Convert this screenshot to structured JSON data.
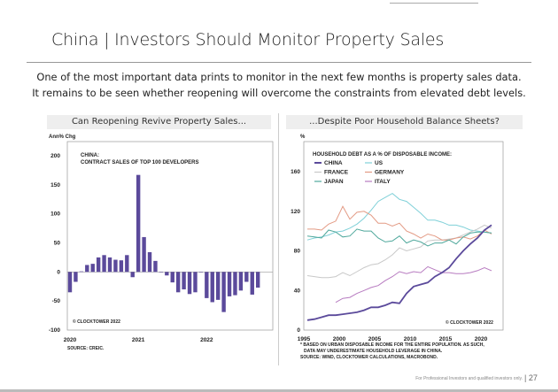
{
  "header": {
    "title": "China | Investors Should Monitor Property Sales",
    "subtitle_1": "One of the most important data prints to monitor in the next few months is property sales data.",
    "subtitle_2": "It remains to be seen whether reopening will overcome the constraints from elevated debt levels."
  },
  "footer": {
    "disclaimer": "For Professional Investors and qualified investors only.",
    "page": "| 27"
  },
  "chart_data": [
    {
      "type": "bar",
      "panel_title": "Can Reopening Revive Property Sales...",
      "title": "CHINA:",
      "subtitle": "CONTRACT SALES OF TOP 100 DEVELOPERS",
      "ylabel": "Ann% Chg",
      "ylim": [
        -100,
        200
      ],
      "yticks": [
        "200",
        "150",
        "100",
        "50",
        "0",
        "-50",
        "-100"
      ],
      "ytick_values": [
        200,
        150,
        100,
        50,
        0,
        -50,
        -100
      ],
      "xtick_labels": [
        "2020",
        "2021",
        "2022"
      ],
      "xtick_index": [
        0,
        12,
        24
      ],
      "copyright": "© CLOCKTOWER 2022",
      "source": "SOURCE: CREIC.",
      "color": "#5b4a9b",
      "values": [
        -35,
        -17,
        1,
        12,
        14,
        25,
        29,
        25,
        21,
        20,
        29,
        -9,
        167,
        60,
        34,
        19,
        0,
        -6,
        -18,
        -35,
        -30,
        -38,
        -35,
        0,
        -45,
        -52,
        -48,
        -69,
        -42,
        -40,
        -32,
        -17,
        -39,
        -27
      ]
    },
    {
      "type": "line",
      "panel_title": "...Despite Poor Household Balance Sheets?",
      "title": "HOUSEHOLD DEBT AS A % OF DISPOSABLE INCOME:",
      "ylabel": "%",
      "ylim": [
        0,
        190
      ],
      "xlim": [
        1995,
        2023
      ],
      "yticks": [
        "0",
        "40",
        "80",
        "120",
        "160"
      ],
      "ytick_values": [
        0,
        40,
        80,
        120,
        160
      ],
      "xticks": [
        "1995",
        "2000",
        "2005",
        "2010",
        "2015",
        "2020"
      ],
      "xtick_values": [
        1995,
        2000,
        2005,
        2010,
        2015,
        2020
      ],
      "copyright": "© CLOCKTOWER 2022",
      "notes": [
        "* BASED ON URBAN DISPOSABLE INCOME FOR THE ENTIRE POPULATION. AS SUCH,",
        "DATA MAY UNDERESTIMATE HOUSEHOLD LEVERAGE IN CHINA.",
        "SOURCE: WIND, CLOCKTOWER CALCULATIONS, MACROBOND."
      ],
      "series": [
        {
          "name": "CHINA",
          "color": "#5b4a9b",
          "start": 1995,
          "values": [
            10,
            11,
            13,
            15,
            15,
            16,
            17,
            18,
            20,
            23,
            23,
            25,
            28,
            27,
            37,
            44,
            46,
            48,
            54,
            58,
            63,
            72,
            80,
            87,
            93,
            101,
            106
          ]
        },
        {
          "name": "US",
          "color": "#7fd0d8",
          "start": 1995,
          "values": [
            91,
            93,
            94,
            96,
            99,
            100,
            103,
            107,
            113,
            121,
            130,
            134,
            138,
            132,
            130,
            124,
            118,
            111,
            111,
            109,
            106,
            106,
            104,
            101,
            100,
            99,
            98
          ]
        },
        {
          "name": "FRANCE",
          "color": "#c8c8c8",
          "start": 1995,
          "values": [
            55,
            54,
            53,
            53,
            54,
            58,
            55,
            59,
            63,
            66,
            67,
            71,
            76,
            83,
            80,
            82,
            84,
            90,
            91,
            91,
            92,
            93,
            96,
            99,
            102,
            106,
            103
          ]
        },
        {
          "name": "GERMANY",
          "color": "#e39a84",
          "start": 1995,
          "values": [
            102,
            102,
            101,
            107,
            110,
            125,
            112,
            119,
            120,
            116,
            108,
            108,
            105,
            108,
            100,
            97,
            93,
            97,
            95,
            91,
            91,
            93,
            94,
            92,
            95,
            101,
            97
          ]
        },
        {
          "name": "JAPAN",
          "color": "#4fa89c",
          "start": 1995,
          "values": [
            95,
            94,
            93,
            101,
            99,
            94,
            95,
            102,
            100,
            100,
            93,
            89,
            90,
            95,
            88,
            91,
            89,
            85,
            88,
            88,
            91,
            87,
            94,
            98,
            99,
            99,
            98
          ]
        },
        {
          "name": "ITALY",
          "color": "#b77bc0",
          "start": 1999,
          "values": [
            28,
            32,
            33,
            37,
            40,
            43,
            45,
            50,
            54,
            59,
            57,
            59,
            58,
            64,
            61,
            58,
            58,
            57,
            57,
            58,
            60,
            63,
            60
          ]
        }
      ]
    }
  ]
}
